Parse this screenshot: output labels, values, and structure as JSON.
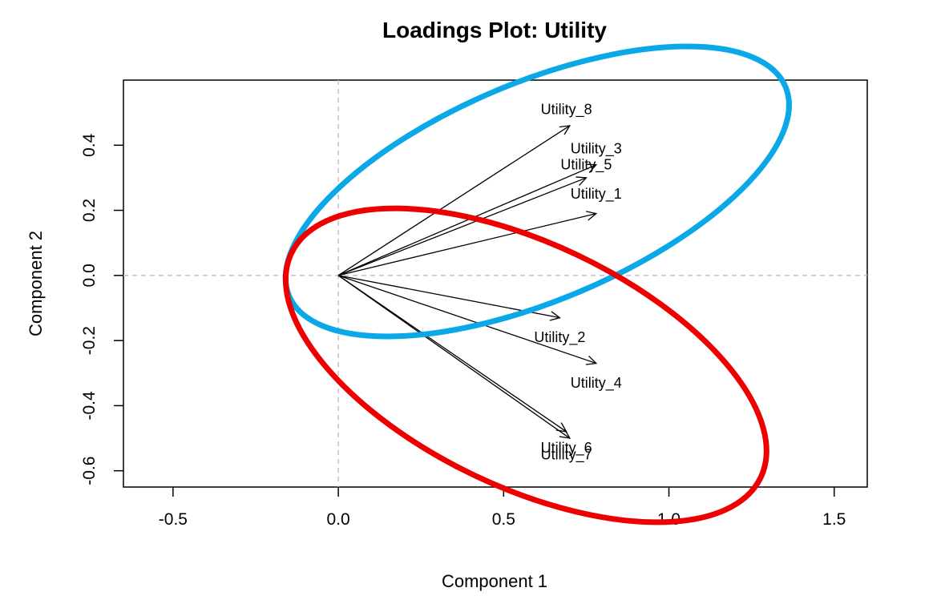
{
  "chart_data": {
    "type": "scatter",
    "title": "Loadings Plot: Utility",
    "xlabel": "Component 1",
    "ylabel": "Component 2",
    "xlim": [
      -0.65,
      1.6
    ],
    "ylim": [
      -0.65,
      0.6
    ],
    "x_ticks": [
      -0.5,
      0.0,
      0.5,
      1.0,
      1.5
    ],
    "y_ticks": [
      -0.6,
      -0.4,
      -0.2,
      0.0,
      0.2,
      0.4
    ],
    "x_tick_labels": [
      "-0.5",
      "0.0",
      "0.5",
      "1.0",
      "1.5"
    ],
    "y_tick_labels": [
      "-0.6",
      "-0.4",
      "-0.2",
      "0.0",
      "0.2",
      "0.4"
    ],
    "grid": false,
    "reference_lines": {
      "x": 0.0,
      "y": 0.0,
      "style": "dashed",
      "color": "#c0c0c0"
    },
    "arrows": [
      {
        "label": "Utility_8",
        "x": 0.7,
        "y": 0.46,
        "label_x": 0.69,
        "label_y": 0.51
      },
      {
        "label": "Utility_3",
        "x": 0.78,
        "y": 0.34,
        "label_x": 0.78,
        "label_y": 0.39
      },
      {
        "label": "Utility_5",
        "x": 0.75,
        "y": 0.3,
        "label_x": 0.75,
        "label_y": 0.34
      },
      {
        "label": "Utility_1",
        "x": 0.78,
        "y": 0.19,
        "label_x": 0.78,
        "label_y": 0.25
      },
      {
        "label": "Utility_2",
        "x": 0.67,
        "y": -0.13,
        "label_x": 0.67,
        "label_y": -0.19
      },
      {
        "label": "Utility_4",
        "x": 0.78,
        "y": -0.27,
        "label_x": 0.78,
        "label_y": -0.33
      },
      {
        "label": "Utility_6",
        "x": 0.69,
        "y": -0.48,
        "label_x": 0.69,
        "label_y": -0.53
      },
      {
        "label": "Utility_7",
        "x": 0.7,
        "y": -0.5,
        "label_x": 0.69,
        "label_y": -0.55
      }
    ],
    "clusters": [
      {
        "color": "#0aa8e6",
        "members": [
          "Utility_8",
          "Utility_3",
          "Utility_5",
          "Utility_1"
        ]
      },
      {
        "color": "#ee0000",
        "members": [
          "Utility_2",
          "Utility_4",
          "Utility_6",
          "Utility_7"
        ]
      }
    ]
  }
}
